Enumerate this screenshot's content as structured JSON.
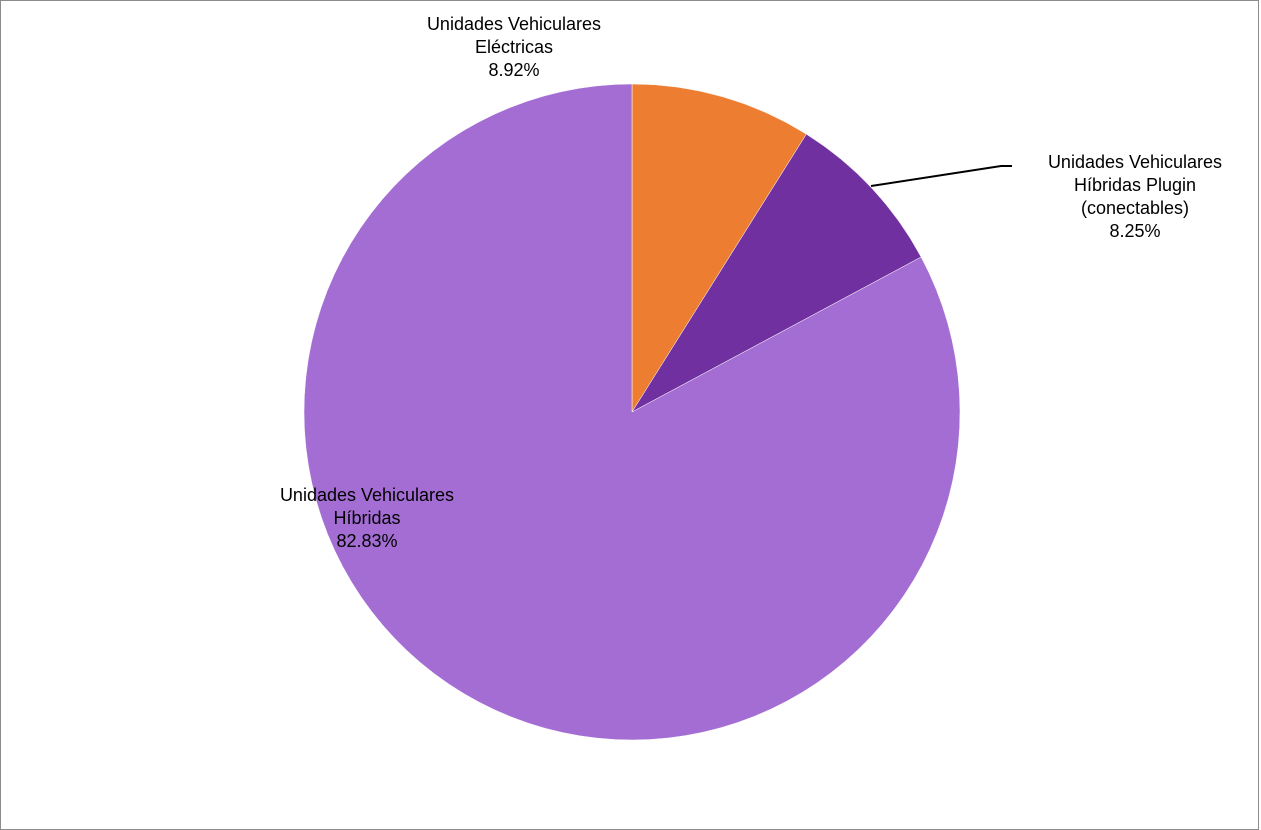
{
  "chart_data": {
    "type": "pie",
    "slices": [
      {
        "name_line1": "Unidades Vehiculares",
        "name_line2": "Eléctricas",
        "name_line3": "",
        "value": 8.92,
        "label": "8.92%",
        "color": "#ED7D31"
      },
      {
        "name_line1": "Unidades Vehiculares",
        "name_line2": "Híbridas Plugin",
        "name_line3": "(conectables)",
        "value": 8.25,
        "label": "8.25%",
        "color": "#7030A0"
      },
      {
        "name_line1": "Unidades Vehiculares",
        "name_line2": "Híbridas",
        "name_line3": "",
        "value": 82.83,
        "label": "82.83%",
        "color": "#A36DD3"
      }
    ]
  }
}
